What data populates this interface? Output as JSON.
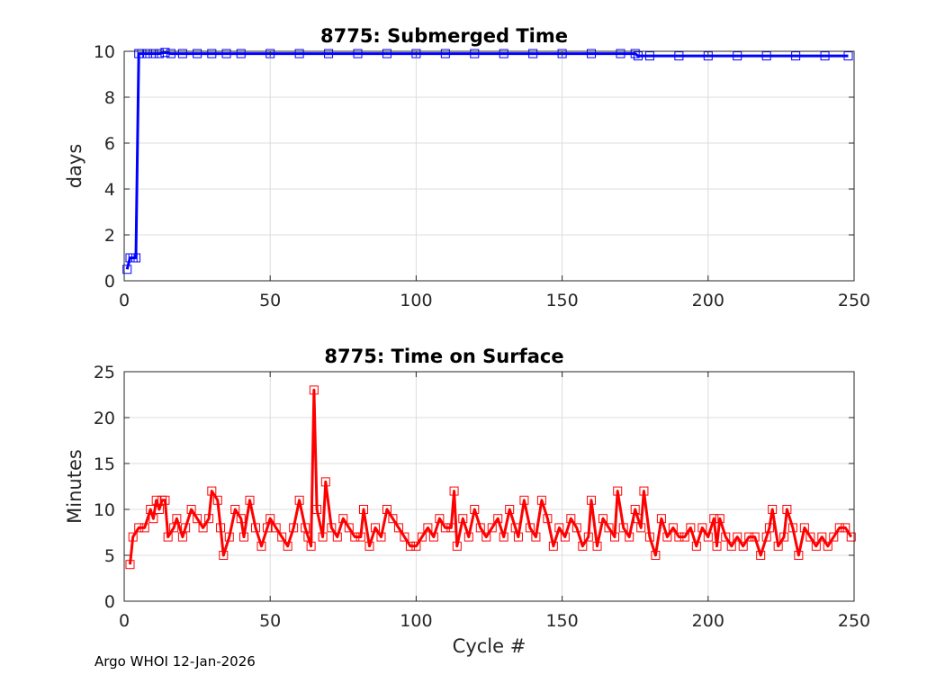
{
  "footer": "Argo WHOI 12-Jan-2026",
  "chart_data": [
    {
      "type": "line",
      "title": "8775: Submerged Time",
      "xlabel": "",
      "ylabel": "days",
      "xlim": [
        0,
        250
      ],
      "ylim": [
        0,
        10
      ],
      "xticks": [
        0,
        50,
        100,
        150,
        200,
        250
      ],
      "yticks": [
        0,
        2,
        4,
        6,
        8,
        10
      ],
      "grid": true,
      "marker": "square",
      "line_color": "#0000ff",
      "marker_color": "#0000ff",
      "series": [
        {
          "x": [
            1,
            2,
            3,
            4,
            5,
            6,
            8,
            10,
            12,
            14,
            16,
            20,
            25,
            30,
            35,
            40,
            50,
            60,
            70,
            80,
            90,
            100,
            110,
            120,
            130,
            140,
            150,
            160,
            170,
            175,
            176,
            180,
            190,
            200,
            210,
            220,
            230,
            240,
            248
          ],
          "values": [
            0.5,
            1.0,
            1.0,
            1.0,
            9.9,
            9.9,
            9.9,
            9.9,
            9.9,
            9.95,
            9.9,
            9.9,
            9.9,
            9.9,
            9.9,
            9.9,
            9.9,
            9.9,
            9.9,
            9.9,
            9.9,
            9.9,
            9.9,
            9.9,
            9.9,
            9.9,
            9.9,
            9.9,
            9.9,
            9.9,
            9.8,
            9.8,
            9.8,
            9.8,
            9.8,
            9.8,
            9.8,
            9.8,
            9.8
          ]
        }
      ]
    },
    {
      "type": "line",
      "title": "8775: Time on Surface",
      "xlabel": "Cycle #",
      "ylabel": "Minutes",
      "xlim": [
        0,
        250
      ],
      "ylim": [
        0,
        25
      ],
      "xticks": [
        0,
        50,
        100,
        150,
        200,
        250
      ],
      "yticks": [
        0,
        5,
        10,
        15,
        20,
        25
      ],
      "grid": true,
      "marker": "square",
      "line_color": "#ff0000",
      "marker_color": "#ff0000",
      "series": [
        {
          "x": [
            2,
            3,
            5,
            7,
            9,
            10,
            11,
            12,
            13,
            14,
            15,
            17,
            18,
            20,
            21,
            23,
            25,
            27,
            29,
            30,
            32,
            33,
            34,
            36,
            38,
            40,
            41,
            43,
            45,
            47,
            49,
            50,
            52,
            54,
            56,
            58,
            60,
            62,
            63,
            64,
            65,
            66,
            68,
            69,
            71,
            73,
            75,
            77,
            79,
            81,
            82,
            84,
            86,
            88,
            90,
            92,
            94,
            96,
            98,
            100,
            102,
            104,
            106,
            108,
            110,
            112,
            113,
            114,
            116,
            118,
            120,
            122,
            124,
            126,
            128,
            130,
            132,
            134,
            135,
            137,
            139,
            141,
            143,
            145,
            147,
            149,
            151,
            153,
            155,
            157,
            159,
            160,
            162,
            164,
            166,
            168,
            169,
            171,
            173,
            175,
            176,
            177,
            178,
            180,
            182,
            184,
            186,
            188,
            190,
            192,
            194,
            196,
            198,
            200,
            202,
            203,
            204,
            206,
            208,
            210,
            212,
            214,
            216,
            218,
            220,
            221,
            222,
            224,
            226,
            227,
            229,
            231,
            233,
            235,
            237,
            239,
            241,
            243,
            245,
            247,
            249
          ],
          "values": [
            4,
            7,
            8,
            8,
            10,
            9,
            11,
            10,
            11,
            11,
            7,
            8,
            9,
            7,
            8,
            10,
            9,
            8,
            9,
            12,
            11,
            8,
            5,
            7,
            10,
            9,
            7,
            11,
            8,
            6,
            8,
            9,
            8,
            7,
            6,
            8,
            11,
            8,
            7,
            6,
            23,
            10,
            7,
            13,
            8,
            7,
            9,
            8,
            7,
            7,
            10,
            6,
            8,
            7,
            10,
            9,
            8,
            7,
            6,
            6,
            7,
            8,
            7,
            9,
            8,
            8,
            12,
            6,
            9,
            7,
            10,
            8,
            7,
            8,
            9,
            7,
            10,
            8,
            7,
            11,
            8,
            7,
            11,
            9,
            6,
            8,
            7,
            9,
            8,
            6,
            7,
            11,
            6,
            9,
            8,
            7,
            12,
            8,
            7,
            10,
            9,
            8,
            12,
            7,
            5,
            9,
            7,
            8,
            7,
            7,
            8,
            6,
            8,
            7,
            9,
            6,
            9,
            7,
            6,
            7,
            6,
            7,
            7,
            5,
            7,
            8,
            10,
            6,
            7,
            10,
            8,
            5,
            8,
            7,
            6,
            7,
            6,
            7,
            8,
            8,
            7
          ]
        }
      ]
    }
  ]
}
